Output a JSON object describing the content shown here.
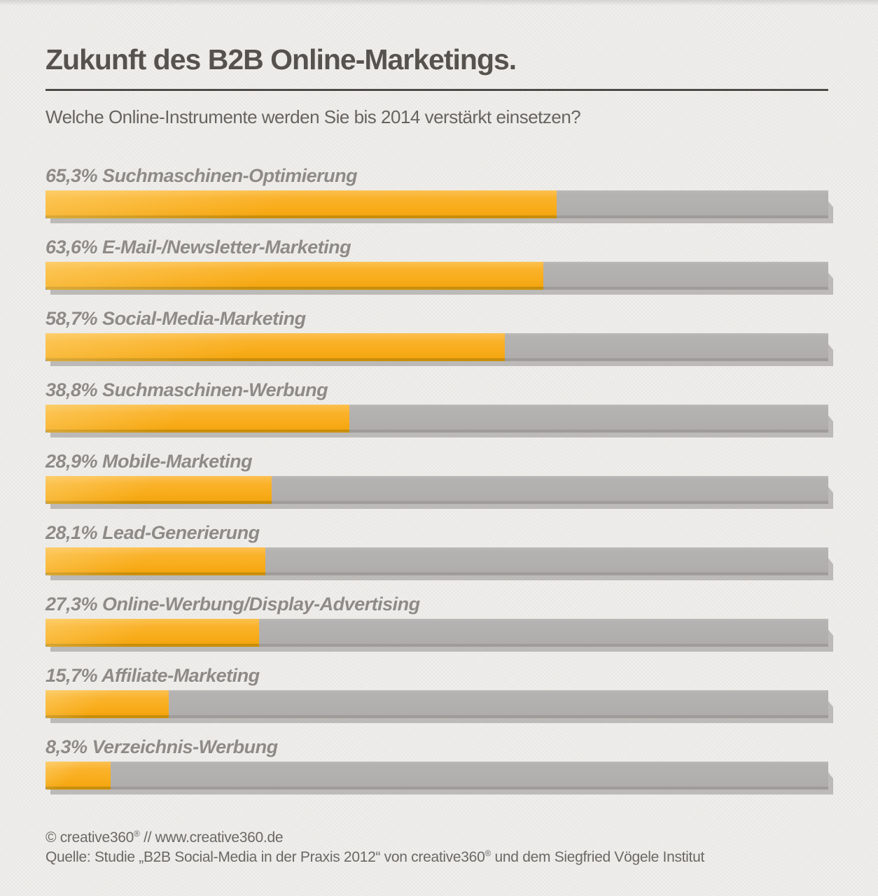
{
  "header": {
    "title": "Zukunft des B2B Online-Marketings.",
    "subtitle": "Welche Online-Instrumente werden Sie bis 2014 verstärkt einsetzen?"
  },
  "chart_data": {
    "type": "bar",
    "orientation": "horizontal",
    "title": "Zukunft des B2B Online-Marketings.",
    "subtitle": "Welche Online-Instrumente werden Sie bis 2014 verstärkt einsetzen?",
    "categories": [
      "Suchmaschinen-Optimierung",
      "E-Mail-/Newsletter-Marketing",
      "Social-Media-Marketing",
      "Suchmaschinen-Werbung",
      "Mobile-Marketing",
      "Lead-Generierung",
      "Online-Werbung/Display-Advertising",
      "Affiliate-Marketing",
      "Verzeichnis-Werbung"
    ],
    "values": [
      65.3,
      63.6,
      58.7,
      38.8,
      28.9,
      28.1,
      27.3,
      15.7,
      8.3
    ],
    "value_labels": [
      "65,3%",
      "63,6%",
      "58,7%",
      "38,8%",
      "28,9%",
      "28,1%",
      "27,3%",
      "15,7%",
      "8,3%"
    ],
    "xlim": [
      0,
      100
    ],
    "unit": "%",
    "grid": false,
    "legend": false,
    "bar_color": "#f9ad1c",
    "track_color": "#b2b0ae"
  },
  "footer": {
    "line1_pre": "© creative360",
    "line1_sup": "®",
    "line1_post": " // www.creative360.de",
    "line2_pre": "Quelle: Studie „B2B Social-Media in der Praxis 2012“ von creative360",
    "line2_sup": "®",
    "line2_post": " und dem Siegfried Vögele Institut"
  },
  "colors": {
    "background": "#ecebe8",
    "title_text": "#56534f",
    "subtitle_text": "#676460",
    "label_text": "#8e8b87",
    "bar_orange": "#f9ad1c",
    "bar_orange_dark_edge": "#c3890b",
    "bar_track_gray": "#b2b0ae",
    "rule": "#4d4a46",
    "footer_text": "#6b6864"
  }
}
